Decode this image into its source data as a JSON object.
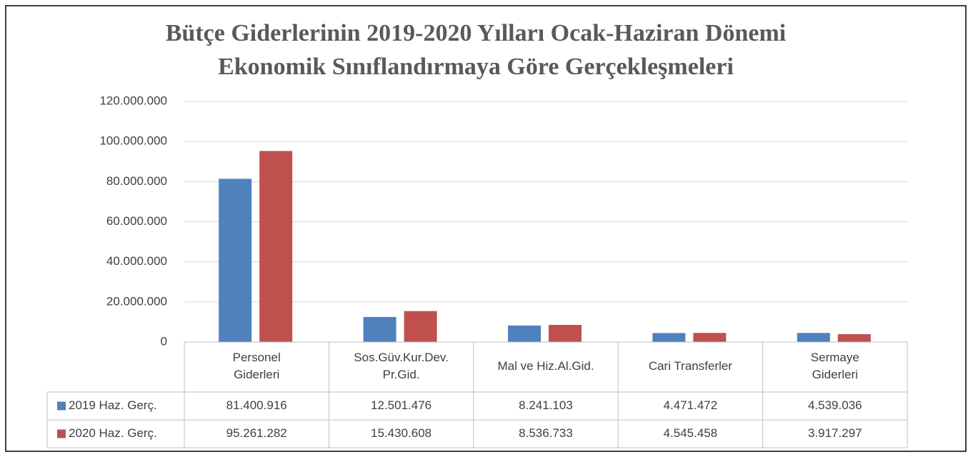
{
  "chart_data": {
    "type": "bar",
    "title": "Bütçe Giderlerinin 2019-2020 Yılları Ocak-Haziran Dönemi",
    "subtitle": "Ekonomik Sınıflandırmaya Göre Gerçekleşmeleri",
    "categories": [
      "Personel\nGiderleri",
      "Sos.Güv.Kur.Dev.\nPr.Gid.",
      "Mal ve Hiz.Al.Gid.",
      "Cari Transferler",
      "Sermaye\nGiderleri"
    ],
    "series": [
      {
        "name": "2019 Haz. Gerç.",
        "color": "#4f81bd",
        "values": [
          81400916,
          12501476,
          8241103,
          4471472,
          4539036
        ],
        "value_labels": [
          "81.400.916",
          "12.501.476",
          "8.241.103",
          "4.471.472",
          "4.539.036"
        ]
      },
      {
        "name": "2020 Haz. Gerç.",
        "color": "#c0504d",
        "values": [
          95261282,
          15430608,
          8536733,
          4545458,
          3917297
        ],
        "value_labels": [
          "95.261.282",
          "15.430.608",
          "8.536.733",
          "4.545.458",
          "3.917.297"
        ]
      }
    ],
    "ylim": [
      0,
      120000000
    ],
    "yticks": [
      0,
      {
        "value": 20000000,
        "label": "20.000.000"
      },
      {
        "value": 40000000,
        "label": "40.000.000"
      },
      {
        "value": 60000000,
        "label": "60.000.000"
      },
      {
        "value": 80000000,
        "label": "80.000.000"
      },
      {
        "value": 100000000,
        "label": "100.000.000"
      },
      {
        "value": 120000000,
        "label": "120.000.000"
      }
    ],
    "grid": true,
    "legend": "table"
  }
}
